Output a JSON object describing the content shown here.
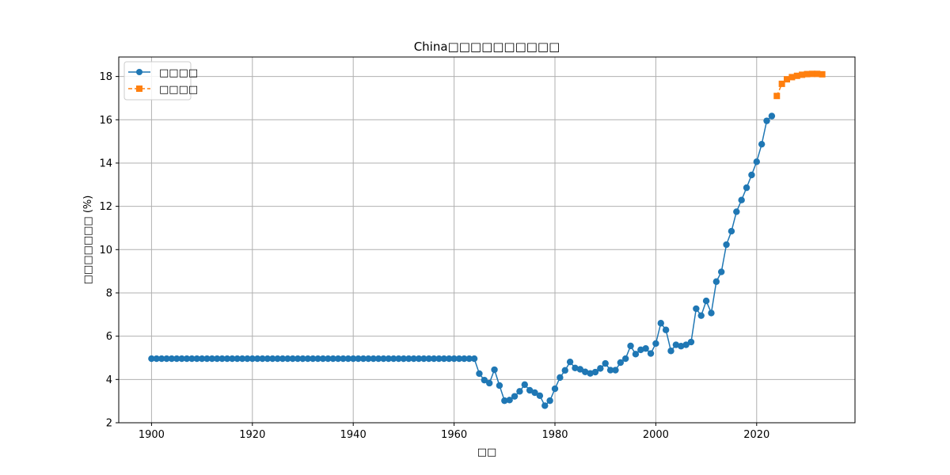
{
  "chart_data": {
    "type": "line",
    "title": "China□□□□□□□□□□",
    "xlabel": "□□",
    "ylabel": "□□□□□□□ (%)",
    "xlim": [
      1893.5,
      2039.5
    ],
    "ylim": [
      2,
      18.9
    ],
    "x_ticks": [
      1900,
      1920,
      1940,
      1960,
      1980,
      2000,
      2020
    ],
    "y_ticks": [
      2,
      4,
      6,
      8,
      10,
      12,
      14,
      16,
      18
    ],
    "grid": true,
    "legend_position": "top-left",
    "series": [
      {
        "name": "□□□□",
        "color": "#1f77b4",
        "marker": "circle",
        "line_style": "solid",
        "x": [
          1900,
          1901,
          1902,
          1903,
          1904,
          1905,
          1906,
          1907,
          1908,
          1909,
          1910,
          1911,
          1912,
          1913,
          1914,
          1915,
          1916,
          1917,
          1918,
          1919,
          1920,
          1921,
          1922,
          1923,
          1924,
          1925,
          1926,
          1927,
          1928,
          1929,
          1930,
          1931,
          1932,
          1933,
          1934,
          1935,
          1936,
          1937,
          1938,
          1939,
          1940,
          1941,
          1942,
          1943,
          1944,
          1945,
          1946,
          1947,
          1948,
          1949,
          1950,
          1951,
          1952,
          1953,
          1954,
          1955,
          1956,
          1957,
          1958,
          1959,
          1960,
          1961,
          1962,
          1963,
          1964,
          1965,
          1966,
          1967,
          1968,
          1969,
          1970,
          1971,
          1972,
          1973,
          1974,
          1975,
          1976,
          1977,
          1978,
          1979,
          1980,
          1981,
          1982,
          1983,
          1984,
          1985,
          1986,
          1987,
          1988,
          1989,
          1990,
          1991,
          1992,
          1993,
          1994,
          1995,
          1996,
          1997,
          1998,
          1999,
          2000,
          2001,
          2002,
          2003,
          2004,
          2005,
          2006,
          2007,
          2008,
          2009,
          2010,
          2011,
          2012,
          2013,
          2014,
          2015,
          2016,
          2017,
          2018,
          2019,
          2020,
          2021,
          2022,
          2023
        ],
        "y": [
          4.96,
          4.96,
          4.96,
          4.96,
          4.96,
          4.96,
          4.96,
          4.96,
          4.96,
          4.96,
          4.96,
          4.96,
          4.96,
          4.96,
          4.96,
          4.96,
          4.96,
          4.96,
          4.96,
          4.96,
          4.96,
          4.96,
          4.96,
          4.96,
          4.96,
          4.96,
          4.96,
          4.96,
          4.96,
          4.96,
          4.96,
          4.96,
          4.96,
          4.96,
          4.96,
          4.96,
          4.96,
          4.96,
          4.96,
          4.96,
          4.96,
          4.96,
          4.96,
          4.96,
          4.96,
          4.96,
          4.96,
          4.96,
          4.96,
          4.96,
          4.96,
          4.96,
          4.96,
          4.96,
          4.96,
          4.96,
          4.96,
          4.96,
          4.96,
          4.96,
          4.96,
          4.96,
          4.96,
          4.96,
          4.96,
          4.27,
          3.97,
          3.83,
          4.45,
          3.72,
          3.02,
          3.05,
          3.22,
          3.45,
          3.76,
          3.5,
          3.39,
          3.25,
          2.79,
          3.02,
          3.57,
          4.09,
          4.42,
          4.81,
          4.53,
          4.47,
          4.35,
          4.28,
          4.34,
          4.51,
          4.74,
          4.43,
          4.43,
          4.78,
          4.96,
          5.55,
          5.17,
          5.37,
          5.43,
          5.2,
          5.66,
          6.6,
          6.29,
          5.32,
          5.6,
          5.54,
          5.6,
          5.73,
          7.27,
          6.95,
          7.63,
          7.07,
          8.52,
          8.97,
          10.23,
          10.85,
          11.75,
          12.29,
          12.86,
          13.45,
          14.06,
          14.87,
          15.95,
          16.17
        ]
      },
      {
        "name": "□□□□",
        "color": "#ff7f0e",
        "marker": "square",
        "line_style": "dashed",
        "x": [
          2024,
          2025,
          2026,
          2027,
          2028,
          2029,
          2030,
          2031,
          2032,
          2033
        ],
        "y": [
          17.1,
          17.66,
          17.87,
          17.97,
          18.03,
          18.08,
          18.11,
          18.12,
          18.12,
          18.1
        ]
      }
    ]
  }
}
